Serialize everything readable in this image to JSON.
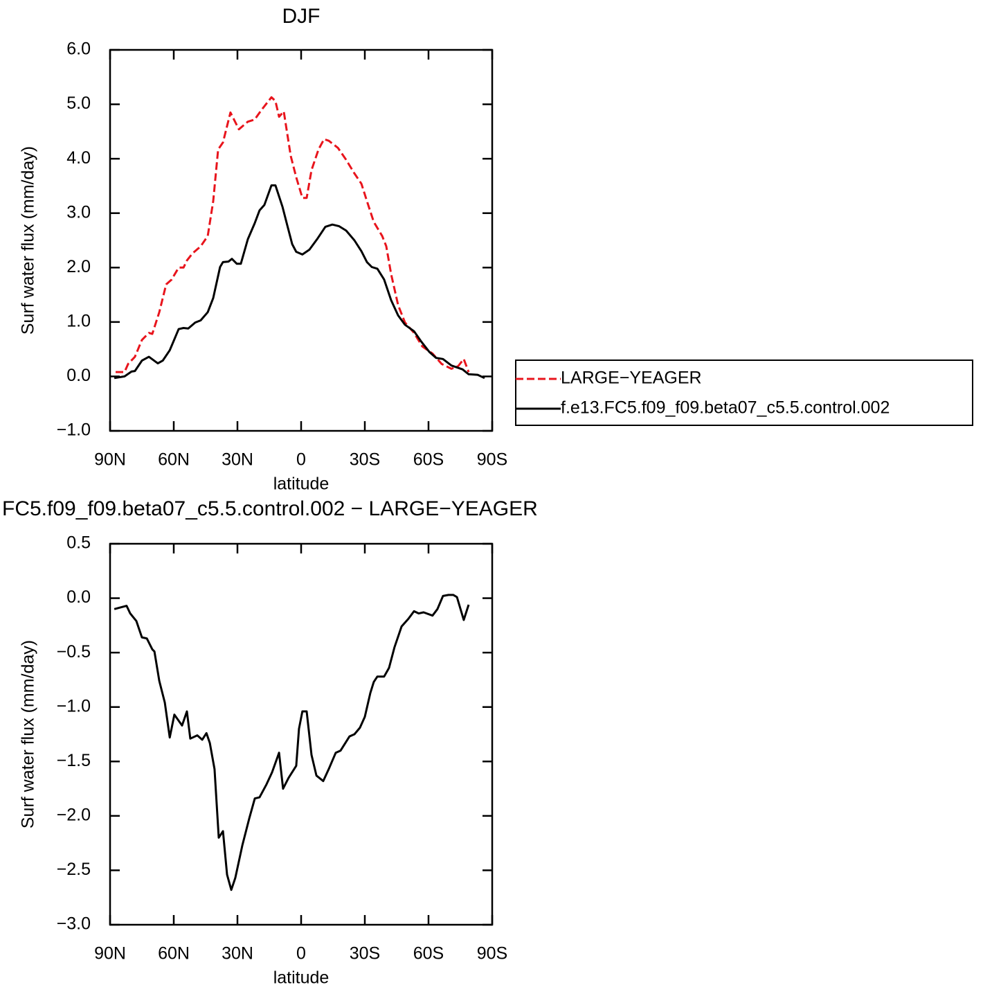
{
  "chart_data": [
    {
      "type": "line",
      "title": "DJF",
      "xlabel": "latitude",
      "ylabel": "Surf water flux (mm/day)",
      "xlim": [
        90,
        -90
      ],
      "xticks": [
        {
          "value": 90,
          "label": "90N"
        },
        {
          "value": 60,
          "label": "60N"
        },
        {
          "value": 30,
          "label": "30N"
        },
        0,
        {
          "value": -30,
          "label": "30S"
        },
        {
          "value": -60,
          "label": "60S"
        },
        {
          "value": -90,
          "label": "90S"
        }
      ],
      "ylim": [
        -1,
        6
      ],
      "yticks": [
        {
          "value": -1,
          "label": "−1.0"
        },
        {
          "value": 0,
          "label": "0.0"
        },
        {
          "value": 1,
          "label": "1.0"
        },
        {
          "value": 2,
          "label": "2.0"
        },
        {
          "value": 3,
          "label": "3.0"
        },
        {
          "value": 4,
          "label": "4.0"
        },
        {
          "value": 5,
          "label": "5.0"
        },
        {
          "value": 6,
          "label": "6.0"
        }
      ],
      "legend": "right",
      "series": [
        {
          "name": "LARGE−YEAGER",
          "color": "#e8141c",
          "linestyle": "dashed",
          "x": [
            87.4,
            83.2,
            81.5,
            78.3,
            75.0,
            71.7,
            70.1,
            66.8,
            63.6,
            61.0,
            57.7,
            55.4,
            53.8,
            51.2,
            47.3,
            44.0,
            41.4,
            39.1,
            36.8,
            34.9,
            33.3,
            29.3,
            25.1,
            21.9,
            18.6,
            14.0,
            12.1,
            10.4,
            8.2,
            4.9,
            2.3,
            -0.6,
            -2.6,
            -4.9,
            -8.2,
            -10.8,
            -13.0,
            -17.3,
            -21.2,
            -25.1,
            -28.4,
            -31.0,
            -34.2,
            -38.2,
            -40.1,
            -42.4,
            -45.7,
            -48.9,
            -53.2,
            -57.1,
            -61.9,
            -66.2,
            -70.8,
            -74.0,
            -76.6,
            -78.9
          ],
          "values": [
            0.08,
            0.08,
            0.23,
            0.36,
            0.67,
            0.8,
            0.78,
            1.18,
            1.69,
            1.78,
            2.0,
            2.0,
            2.13,
            2.26,
            2.39,
            2.58,
            3.22,
            4.17,
            4.3,
            4.6,
            4.85,
            4.54,
            4.68,
            4.72,
            4.9,
            5.13,
            5.06,
            4.77,
            4.87,
            4.05,
            3.66,
            3.28,
            3.28,
            3.79,
            4.17,
            4.36,
            4.33,
            4.2,
            3.98,
            3.73,
            3.54,
            3.22,
            2.84,
            2.58,
            2.39,
            1.88,
            1.31,
            0.99,
            0.8,
            0.55,
            0.42,
            0.23,
            0.14,
            0.19,
            0.32,
            0.08
          ]
        },
        {
          "name": "f.e13.FC5.f09_f09.beta07_c5.5.control.002",
          "color": "#000000",
          "linestyle": "solid",
          "x": [
            88.0,
            83.2,
            79.9,
            78.3,
            75.0,
            71.7,
            67.5,
            65.2,
            61.9,
            57.7,
            55.4,
            53.2,
            49.9,
            47.3,
            44.0,
            41.4,
            38.2,
            36.8,
            34.2,
            32.6,
            30.3,
            28.4,
            25.1,
            21.9,
            19.6,
            17.3,
            14.0,
            12.1,
            8.8,
            6.5,
            4.2,
            2.3,
            -0.6,
            -3.9,
            -7.5,
            -11.4,
            -14.7,
            -17.9,
            -21.2,
            -25.1,
            -28.4,
            -31.0,
            -33.3,
            -35.9,
            -39.1,
            -42.4,
            -45.7,
            -48.9,
            -53.2,
            -56.4,
            -60.4,
            -63.6,
            -66.8,
            -70.8,
            -76.0,
            -78.9,
            -83.2,
            -86.4
          ],
          "values": [
            -0.03,
            0.0,
            0.09,
            0.1,
            0.29,
            0.36,
            0.24,
            0.29,
            0.48,
            0.87,
            0.89,
            0.88,
            0.99,
            1.03,
            1.18,
            1.44,
            2.01,
            2.1,
            2.11,
            2.16,
            2.07,
            2.07,
            2.52,
            2.81,
            3.05,
            3.15,
            3.51,
            3.51,
            3.12,
            2.77,
            2.43,
            2.29,
            2.24,
            2.33,
            2.52,
            2.75,
            2.79,
            2.76,
            2.68,
            2.5,
            2.3,
            2.1,
            2.01,
            1.98,
            1.78,
            1.4,
            1.12,
            0.95,
            0.83,
            0.65,
            0.45,
            0.34,
            0.32,
            0.2,
            0.13,
            0.04,
            0.03,
            -0.03
          ]
        }
      ]
    },
    {
      "type": "line",
      "title": "FC5.f09_f09.beta07_c5.5.control.002 − LARGE−YEAGER",
      "xlabel": "latitude",
      "ylabel": "Surf water flux (mm/day)",
      "xlim": [
        90,
        -90
      ],
      "xticks": [
        {
          "value": 90,
          "label": "90N"
        },
        {
          "value": 60,
          "label": "60N"
        },
        {
          "value": 30,
          "label": "30N"
        },
        0,
        {
          "value": -30,
          "label": "30S"
        },
        {
          "value": -60,
          "label": "60S"
        },
        {
          "value": -90,
          "label": "90S"
        }
      ],
      "ylim": [
        -3,
        0.5
      ],
      "yticks": [
        {
          "value": -3,
          "label": "−3.0"
        },
        {
          "value": -2.5,
          "label": "−2.5"
        },
        {
          "value": -2,
          "label": "−2.0"
        },
        {
          "value": -1.5,
          "label": "−1.5"
        },
        {
          "value": -1,
          "label": "−1.0"
        },
        {
          "value": -0.5,
          "label": "−0.5"
        },
        {
          "value": 0,
          "label": "0.0"
        },
        0.5
      ],
      "series": [
        {
          "color": "#000000",
          "linestyle": "solid",
          "x": [
            88.0,
            82.2,
            80.5,
            77.6,
            75.0,
            72.7,
            70.1,
            69.1,
            66.8,
            64.2,
            61.9,
            59.7,
            56.1,
            53.8,
            52.2,
            48.9,
            46.6,
            44.6,
            43.0,
            40.8,
            38.8,
            36.8,
            34.9,
            32.9,
            31.0,
            27.7,
            24.4,
            21.8,
            19.6,
            16.3,
            13.7,
            10.4,
            8.5,
            5.9,
            2.3,
            1.0,
            -0.6,
            -2.6,
            -4.9,
            -7.2,
            -10.4,
            -13.0,
            -16.3,
            -18.6,
            -22.8,
            -25.1,
            -27.7,
            -30.0,
            -32.6,
            -34.2,
            -35.9,
            -39.1,
            -41.4,
            -44.0,
            -47.3,
            -50.5,
            -53.2,
            -55.4,
            -57.7,
            -61.9,
            -64.2,
            -66.8,
            -69.4,
            -71.7,
            -73.4,
            -76.6,
            -78.9
          ],
          "values": [
            -0.1,
            -0.07,
            -0.14,
            -0.21,
            -0.36,
            -0.37,
            -0.47,
            -0.49,
            -0.76,
            -0.96,
            -1.28,
            -1.07,
            -1.17,
            -1.04,
            -1.29,
            -1.26,
            -1.3,
            -1.24,
            -1.33,
            -1.57,
            -2.2,
            -2.14,
            -2.54,
            -2.68,
            -2.57,
            -2.27,
            -2.02,
            -1.84,
            -1.83,
            -1.71,
            -1.6,
            -1.42,
            -1.75,
            -1.65,
            -1.54,
            -1.2,
            -1.04,
            -1.04,
            -1.44,
            -1.63,
            -1.68,
            -1.57,
            -1.42,
            -1.4,
            -1.27,
            -1.25,
            -1.19,
            -1.09,
            -0.87,
            -0.77,
            -0.72,
            -0.72,
            -0.64,
            -0.45,
            -0.26,
            -0.19,
            -0.12,
            -0.14,
            -0.13,
            -0.16,
            -0.1,
            0.02,
            0.03,
            0.03,
            0.01,
            -0.2,
            -0.06
          ]
        }
      ]
    }
  ]
}
